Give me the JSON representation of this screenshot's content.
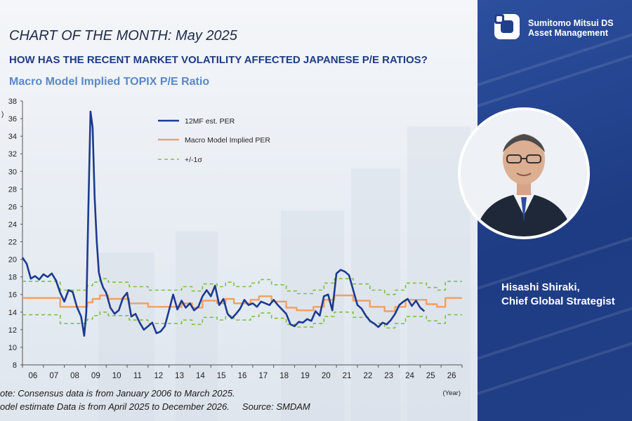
{
  "header": {
    "chart_of_month": "CHART OF THE MONTH: May 2025",
    "question": "HOW HAS THE RECENT MARKET VOLATILITY AFFECTED JAPANESE P/E RATIOS?",
    "chart_title": "Macro Model Implied TOPIX P/E Ratio"
  },
  "brand": {
    "line1": "Sumitomo Mitsui DS",
    "line2": "Asset Management"
  },
  "person": {
    "name": "Hisashi Shiraki,",
    "title": "Chief Global Strategist"
  },
  "notes": {
    "line1": "ote: Consensus data is from January 2006 to March 2025.",
    "line2": "odel estimate Data is from April 2025 to December 2026.",
    "source": "Source: SMDAM"
  },
  "colors": {
    "per": "#1c3a8f",
    "model": "#f0a060",
    "band": "#7cc242",
    "panel": "#1e3c84",
    "question": "#1e3c84",
    "subtitle": "#5a88c9"
  },
  "chart_data": {
    "type": "line",
    "ylabel": ")",
    "xlabel": "(Year)",
    "ylim": [
      8,
      38
    ],
    "xlim": [
      2006,
      2027
    ],
    "yticks": [
      "8",
      "10",
      "12",
      "14",
      "16",
      "18",
      "20",
      "22",
      "24",
      "26",
      "28",
      "30",
      "32",
      "34",
      "36",
      "38"
    ],
    "xticks": [
      "06",
      "07",
      "08",
      "09",
      "10",
      "11",
      "12",
      "13",
      "14",
      "15",
      "16",
      "17",
      "18",
      "19",
      "20",
      "21",
      "22",
      "23",
      "24",
      "25",
      "26"
    ],
    "legend": [
      "12MF est. PER",
      "Macro Model Implied PER",
      "+/-1σ"
    ],
    "series": [
      {
        "name": "12MF est. PER",
        "x": [
          2006,
          2006.2,
          2006.4,
          2006.6,
          2006.8,
          2007,
          2007.2,
          2007.4,
          2007.6,
          2007.8,
          2008,
          2008.2,
          2008.4,
          2008.6,
          2008.8,
          2008.95,
          2009.05,
          2009.15,
          2009.25,
          2009.35,
          2009.45,
          2009.55,
          2009.65,
          2009.75,
          2009.85,
          2010,
          2010.2,
          2010.4,
          2010.6,
          2010.8,
          2011,
          2011.2,
          2011.4,
          2011.6,
          2011.8,
          2012,
          2012.2,
          2012.4,
          2012.6,
          2012.8,
          2013,
          2013.2,
          2013.4,
          2013.6,
          2013.8,
          2014,
          2014.2,
          2014.4,
          2014.6,
          2014.8,
          2015,
          2015.2,
          2015.4,
          2015.6,
          2015.8,
          2016,
          2016.2,
          2016.4,
          2016.6,
          2016.8,
          2017,
          2017.2,
          2017.4,
          2017.6,
          2017.8,
          2018,
          2018.2,
          2018.4,
          2018.6,
          2018.8,
          2019,
          2019.2,
          2019.4,
          2019.6,
          2019.8,
          2020,
          2020.2,
          2020.4,
          2020.6,
          2020.8,
          2021,
          2021.2,
          2021.4,
          2021.6,
          2021.8,
          2022,
          2022.2,
          2022.4,
          2022.6,
          2022.8,
          2023,
          2023.2,
          2023.4,
          2023.6,
          2023.8,
          2024,
          2024.2,
          2024.4,
          2024.6,
          2024.8,
          2025,
          2025.2
        ],
        "y": [
          20.2,
          19.5,
          17.8,
          18.1,
          17.7,
          18.3,
          18.0,
          18.4,
          17.6,
          16.2,
          15.2,
          16.5,
          16.3,
          14.6,
          13.5,
          11.3,
          14.0,
          26.0,
          36.8,
          35.0,
          27.0,
          22.0,
          18.5,
          17.5,
          16.8,
          16.2,
          14.5,
          13.8,
          14.2,
          15.6,
          16.2,
          13.5,
          13.8,
          12.8,
          12.0,
          12.4,
          12.8,
          11.6,
          11.8,
          12.4,
          14.2,
          16.0,
          14.3,
          15.3,
          14.5,
          15.0,
          14.2,
          14.6,
          15.8,
          16.5,
          15.8,
          17.0,
          14.8,
          15.5,
          13.8,
          13.3,
          13.8,
          14.4,
          15.4,
          14.8,
          15.0,
          14.6,
          15.2,
          15.0,
          14.8,
          15.4,
          14.8,
          14.3,
          13.8,
          12.6,
          12.4,
          12.9,
          12.8,
          13.2,
          13.0,
          14.1,
          13.6,
          15.8,
          16.0,
          14.2,
          18.4,
          18.8,
          18.6,
          18.2,
          16.5,
          14.8,
          14.4,
          13.6,
          13.0,
          12.7,
          12.3,
          12.8,
          12.6,
          13.1,
          13.8,
          14.8,
          15.2,
          15.5,
          14.7,
          15.3,
          14.5,
          14.1
        ]
      },
      {
        "name": "Macro Model Implied PER",
        "x": [
          2006,
          2007.8,
          2007.8,
          2009.1,
          2009.1,
          2009.35,
          2009.35,
          2009.7,
          2009.7,
          2010.1,
          2010.1,
          2011.1,
          2011.1,
          2012,
          2012,
          2013.6,
          2013.6,
          2014.1,
          2014.1,
          2014.6,
          2014.6,
          2015.3,
          2015.3,
          2015.7,
          2015.7,
          2016.1,
          2016.1,
          2016.9,
          2016.9,
          2017.3,
          2017.3,
          2017.9,
          2017.9,
          2018.6,
          2018.6,
          2019.1,
          2019.1,
          2019.9,
          2019.9,
          2020.4,
          2020.4,
          2020.9,
          2020.9,
          2021.8,
          2021.8,
          2022.6,
          2022.6,
          2023.3,
          2023.3,
          2023.8,
          2023.8,
          2024.3,
          2024.3,
          2025.3,
          2025.3,
          2025.8,
          2025.8,
          2026.2,
          2026.2,
          2027
        ],
        "y": [
          15.6,
          15.6,
          14.6,
          14.6,
          15.1,
          15.1,
          15.5,
          15.5,
          15.9,
          15.9,
          15.5,
          15.5,
          15.0,
          15.0,
          14.6,
          14.6,
          15.0,
          15.0,
          14.5,
          14.5,
          15.3,
          15.3,
          15.0,
          15.0,
          15.5,
          15.5,
          15.0,
          15.0,
          15.4,
          15.4,
          15.8,
          15.8,
          15.2,
          15.2,
          14.5,
          14.5,
          14.2,
          14.2,
          14.6,
          14.6,
          15.4,
          15.4,
          15.9,
          15.9,
          15.3,
          15.3,
          14.6,
          14.6,
          14.1,
          14.1,
          14.6,
          14.6,
          15.4,
          15.4,
          14.9,
          14.9,
          14.6,
          14.6,
          15.6,
          15.6
        ]
      },
      {
        "name": "+1σ",
        "x": [
          2006,
          2007.8,
          2007.8,
          2009.1,
          2009.1,
          2009.35,
          2009.35,
          2009.7,
          2009.7,
          2010.1,
          2010.1,
          2011.1,
          2011.1,
          2012,
          2012,
          2013.6,
          2013.6,
          2014.1,
          2014.1,
          2014.6,
          2014.6,
          2015.3,
          2015.3,
          2015.7,
          2015.7,
          2016.1,
          2016.1,
          2016.9,
          2016.9,
          2017.3,
          2017.3,
          2017.9,
          2017.9,
          2018.6,
          2018.6,
          2019.1,
          2019.1,
          2019.9,
          2019.9,
          2020.4,
          2020.4,
          2020.9,
          2020.9,
          2021.8,
          2021.8,
          2022.6,
          2022.6,
          2023.3,
          2023.3,
          2023.8,
          2023.8,
          2024.3,
          2024.3,
          2025.3,
          2025.3,
          2025.8,
          2025.8,
          2026.2,
          2026.2,
          2027
        ],
        "y": [
          17.5,
          17.5,
          16.5,
          16.5,
          17.0,
          17.0,
          17.4,
          17.4,
          17.8,
          17.8,
          17.4,
          17.4,
          16.9,
          16.9,
          16.5,
          16.5,
          16.9,
          16.9,
          16.4,
          16.4,
          17.2,
          17.2,
          16.9,
          16.9,
          17.4,
          17.4,
          16.9,
          16.9,
          17.3,
          17.3,
          17.7,
          17.7,
          17.1,
          17.1,
          16.4,
          16.4,
          16.1,
          16.1,
          16.5,
          16.5,
          17.3,
          17.3,
          17.8,
          17.8,
          17.2,
          17.2,
          16.5,
          16.5,
          16.0,
          16.0,
          16.5,
          16.5,
          17.3,
          17.3,
          16.8,
          16.8,
          16.5,
          16.5,
          17.5,
          17.5
        ]
      },
      {
        "name": "-1σ",
        "x": [
          2006,
          2007.8,
          2007.8,
          2009.1,
          2009.1,
          2009.35,
          2009.35,
          2009.7,
          2009.7,
          2010.1,
          2010.1,
          2011.1,
          2011.1,
          2012,
          2012,
          2013.6,
          2013.6,
          2014.1,
          2014.1,
          2014.6,
          2014.6,
          2015.3,
          2015.3,
          2015.7,
          2015.7,
          2016.1,
          2016.1,
          2016.9,
          2016.9,
          2017.3,
          2017.3,
          2017.9,
          2017.9,
          2018.6,
          2018.6,
          2019.1,
          2019.1,
          2019.9,
          2019.9,
          2020.4,
          2020.4,
          2020.9,
          2020.9,
          2021.8,
          2021.8,
          2022.6,
          2022.6,
          2023.3,
          2023.3,
          2023.8,
          2023.8,
          2024.3,
          2024.3,
          2025.3,
          2025.3,
          2025.8,
          2025.8,
          2026.2,
          2026.2,
          2027
        ],
        "y": [
          13.7,
          13.7,
          12.7,
          12.7,
          13.2,
          13.2,
          13.6,
          13.6,
          14.0,
          14.0,
          13.6,
          13.6,
          13.1,
          13.1,
          12.7,
          12.7,
          13.1,
          13.1,
          12.6,
          12.6,
          13.4,
          13.4,
          13.1,
          13.1,
          13.6,
          13.6,
          13.1,
          13.1,
          13.5,
          13.5,
          13.9,
          13.9,
          13.3,
          13.3,
          12.6,
          12.6,
          12.3,
          12.3,
          12.7,
          12.7,
          13.5,
          13.5,
          14.0,
          14.0,
          13.4,
          13.4,
          12.7,
          12.7,
          12.2,
          12.2,
          12.7,
          12.7,
          13.5,
          13.5,
          13.0,
          13.0,
          12.7,
          12.7,
          13.7,
          13.7
        ]
      }
    ]
  }
}
